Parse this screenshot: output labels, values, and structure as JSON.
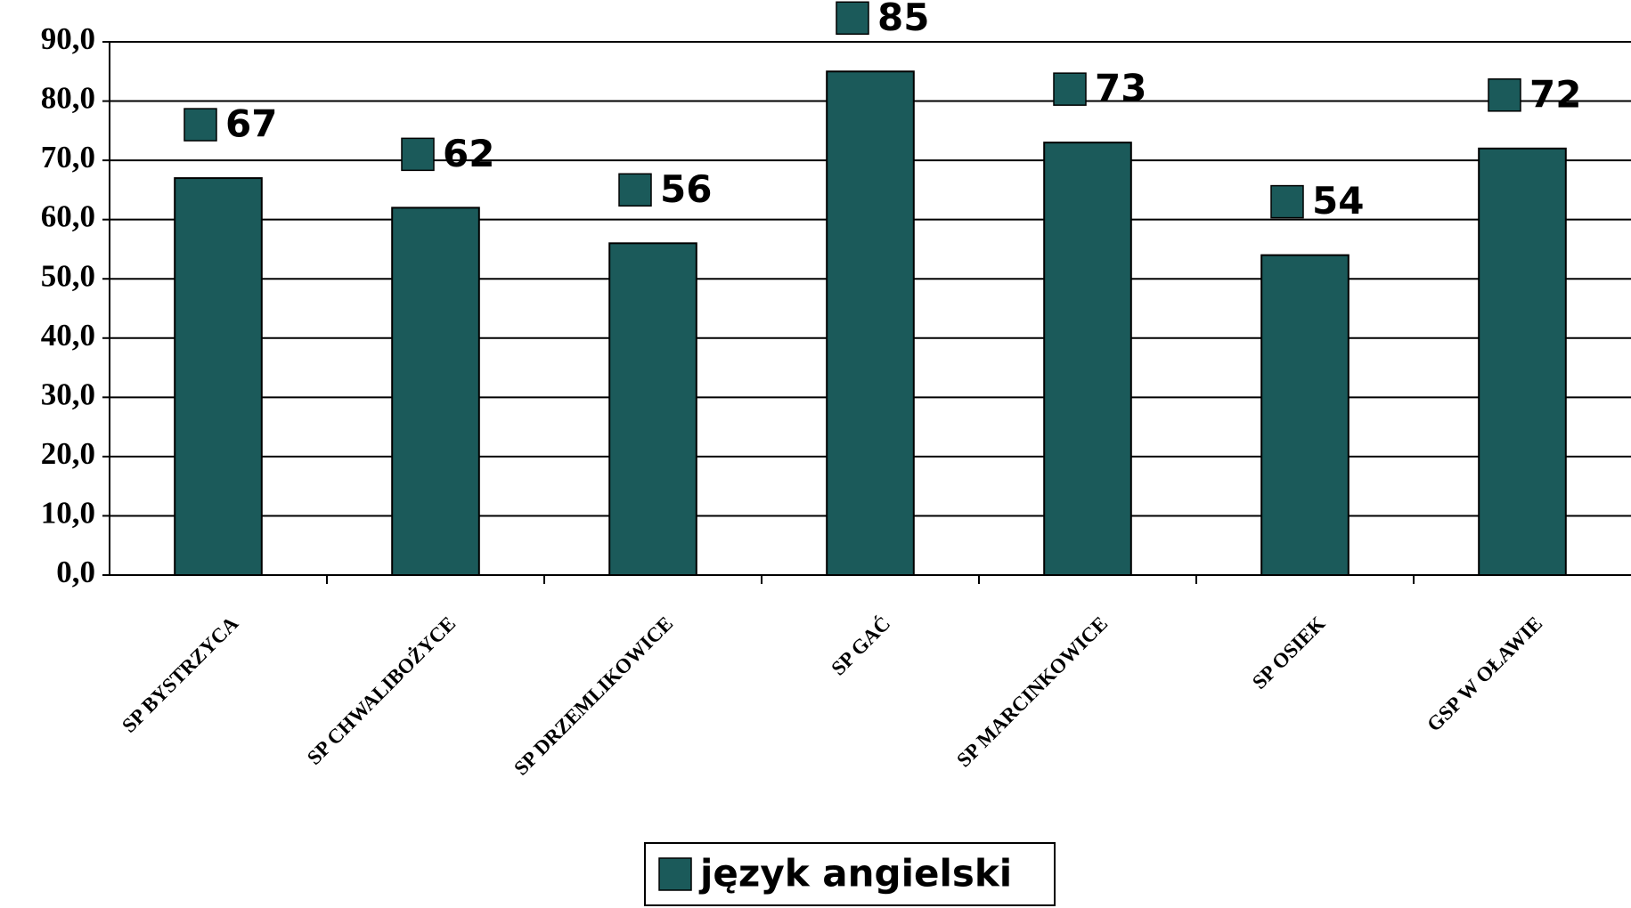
{
  "chart_data": {
    "type": "bar",
    "categories": [
      "SP BYSTRZYCA",
      "SP CHWALIBOŻYCE",
      "SP DRZEMLIKOWICE",
      "SP GAĆ",
      "SP MARCINKOWICE",
      "SP OSIEK",
      "GSP W OŁAWIE"
    ],
    "series": [
      {
        "name": "język angielski",
        "color": "#1b5a5a",
        "values": [
          67,
          62,
          56,
          85,
          73,
          54,
          72
        ]
      }
    ],
    "ylim": [
      0,
      90
    ],
    "yticks": [
      {
        "value": 0,
        "label": "0,0"
      },
      {
        "value": 10,
        "label": "10,0"
      },
      {
        "value": 20,
        "label": "20,0"
      },
      {
        "value": 30,
        "label": "30,0"
      },
      {
        "value": 40,
        "label": "40,0"
      },
      {
        "value": 50,
        "label": "50,0"
      },
      {
        "value": 60,
        "label": "60,0"
      },
      {
        "value": 70,
        "label": "70,0"
      },
      {
        "value": 80,
        "label": "80,0"
      },
      {
        "value": 90,
        "label": "90,0"
      }
    ],
    "grid": true,
    "legend": "bottom"
  }
}
